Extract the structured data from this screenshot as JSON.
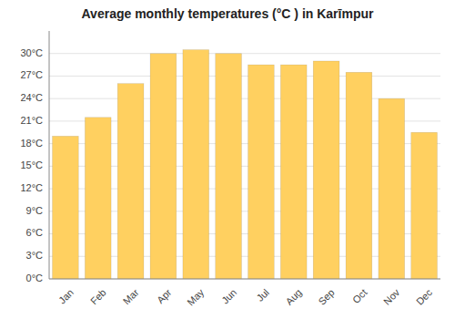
{
  "chart_data": {
    "type": "bar",
    "title": "Average monthly temperatures (°C ) in Karīmpur",
    "categories": [
      "Jan",
      "Feb",
      "Mar",
      "Apr",
      "May",
      "Jun",
      "Jul",
      "Aug",
      "Sep",
      "Oct",
      "Nov",
      "Dec"
    ],
    "values": [
      19,
      21.5,
      26,
      30,
      30.5,
      30,
      28.5,
      28.5,
      29,
      27.5,
      24,
      19.5
    ],
    "color": "#FFD060",
    "ylim": [
      0,
      33
    ],
    "yticks": [
      {
        "value": 0,
        "label": "0°C"
      },
      {
        "value": 3,
        "label": "3°C"
      },
      {
        "value": 6,
        "label": "6°C"
      },
      {
        "value": 9,
        "label": "9°C"
      },
      {
        "value": 12,
        "label": "12°C"
      },
      {
        "value": 15,
        "label": "15°C"
      },
      {
        "value": 18,
        "label": "18°C"
      },
      {
        "value": 21,
        "label": "21°C"
      },
      {
        "value": 24,
        "label": "24°C"
      },
      {
        "value": 27,
        "label": "27°C"
      },
      {
        "value": 30,
        "label": "30°C"
      }
    ],
    "grid": true
  }
}
